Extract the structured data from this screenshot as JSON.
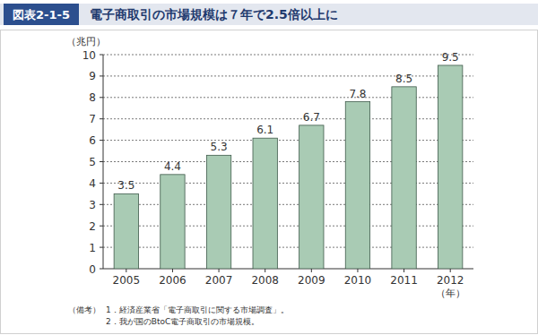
{
  "chart_data": {
    "type": "bar",
    "figure_number": "図表2-1-5",
    "title": "電子商取引の市場規模は７年で2.5倍以上に",
    "y_label": "（兆円）",
    "x_label": "（年）",
    "categories": [
      "2005",
      "2006",
      "2007",
      "2008",
      "2009",
      "2010",
      "2011",
      "2012"
    ],
    "values": [
      3.5,
      4.4,
      5.3,
      6.1,
      6.7,
      7.8,
      8.5,
      9.5
    ],
    "color": "#a9cbb4",
    "ylim": [
      0,
      10
    ],
    "yticks": [
      0,
      1,
      2,
      3,
      4,
      5,
      6,
      7,
      8,
      9,
      10
    ],
    "grid": true,
    "data_labels": true,
    "notes_heading": "（備考）",
    "notes": [
      "1．経済産業省「電子商取引に関する市場調査」。",
      "2．我が国のBtoC電子商取引の市場規模。"
    ]
  }
}
